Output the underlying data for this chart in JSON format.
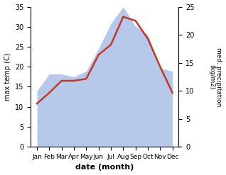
{
  "months": [
    "Jan",
    "Feb",
    "Mar",
    "Apr",
    "May",
    "Jun",
    "Jul",
    "Aug",
    "Sep",
    "Oct",
    "Nov",
    "Dec"
  ],
  "max_temp": [
    10.8,
    13.5,
    16.5,
    16.5,
    17.0,
    23.0,
    25.5,
    32.5,
    31.5,
    27.0,
    20.0,
    13.5
  ],
  "precipitation": [
    10.0,
    13.0,
    13.0,
    12.5,
    13.5,
    17.5,
    22.0,
    25.0,
    21.5,
    20.0,
    14.0,
    13.5
  ],
  "temp_ylim": [
    0,
    35
  ],
  "precip_ylim": [
    0,
    25
  ],
  "temp_color": "#c0392b",
  "precip_fill_color": "#b0c4e8",
  "xlabel": "date (month)",
  "ylabel_left": "max temp (C)",
  "ylabel_right": "med. precipitation\n(kg/m2)",
  "temp_yticks": [
    0,
    5,
    10,
    15,
    20,
    25,
    30,
    35
  ],
  "precip_yticks": [
    0,
    5,
    10,
    15,
    20,
    25
  ]
}
